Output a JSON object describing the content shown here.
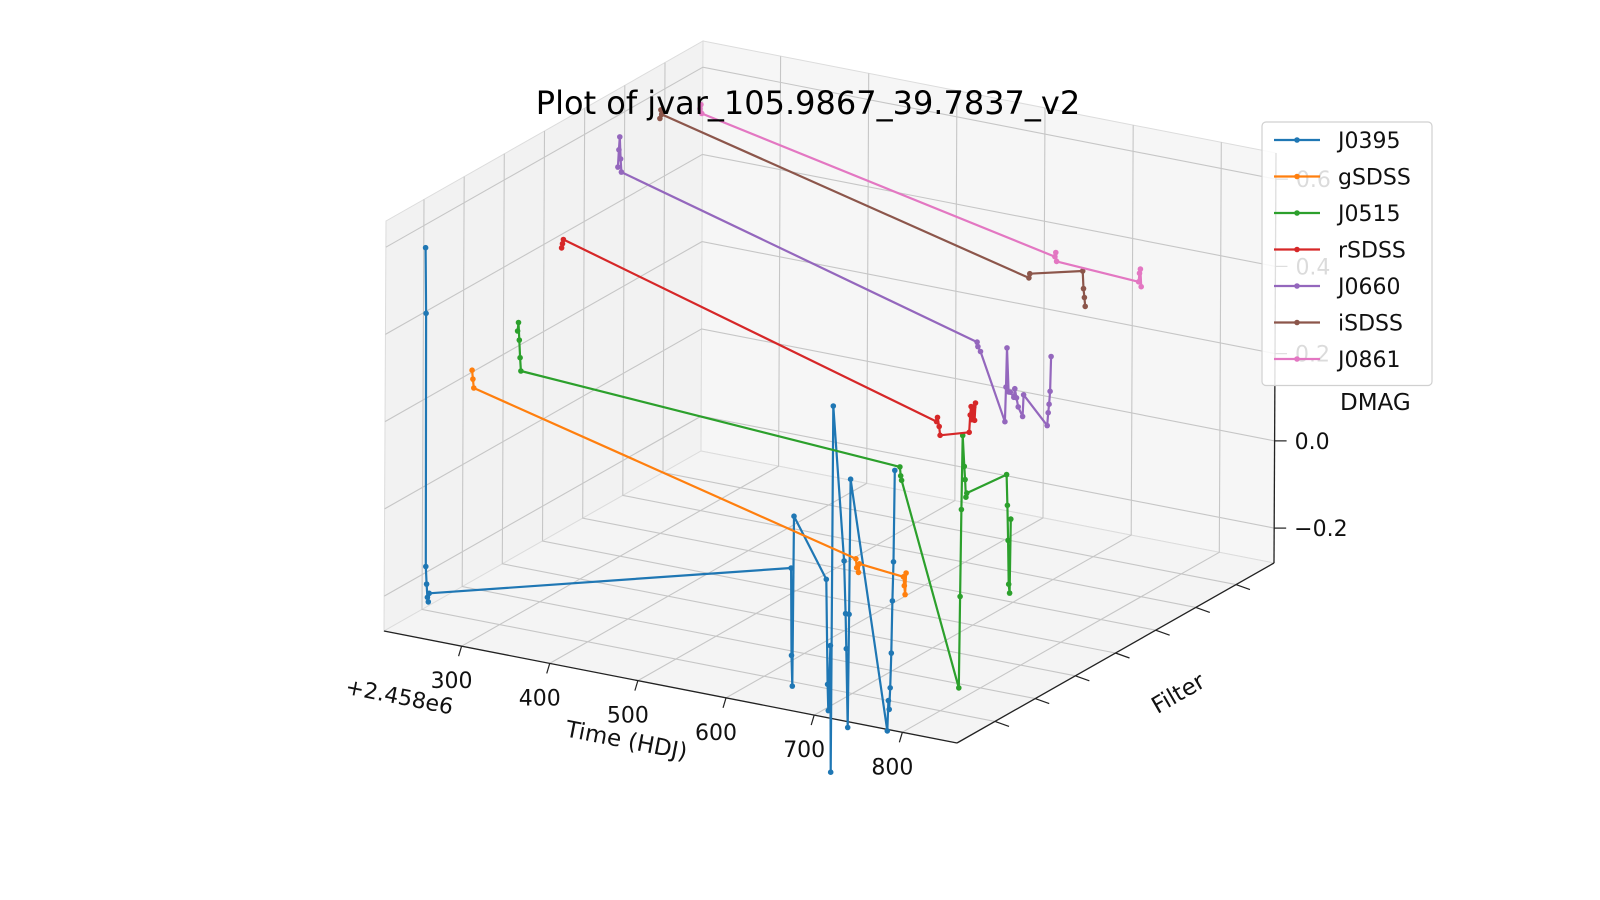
{
  "chart_data": {
    "type": "line",
    "projection": "3d",
    "title": "Plot of jvar_105.9867_39.7837_v2",
    "xlabel": "Time (HDJ)",
    "ylabel": "Filter",
    "zlabel": "DMAG",
    "x_offset_label": "+2.458e6",
    "xlim": [
      212,
      862
    ],
    "zlim": [
      -0.28,
      0.66
    ],
    "x_ticks": [
      "300",
      "400",
      "500",
      "600",
      "700",
      "800"
    ],
    "z_ticks": [
      "−0.2",
      "0.0",
      "0.2",
      "0.4",
      "0.6"
    ],
    "legend_position": "top-right",
    "grid": true,
    "series": [
      {
        "name": "J0395",
        "color": "#1f77b4",
        "points": [
          [
            214,
            0.55
          ],
          [
            215,
            0.4
          ],
          [
            216,
            -0.18
          ],
          [
            217,
            -0.22
          ],
          [
            218,
            -0.25
          ],
          [
            219,
            -0.26
          ],
          [
            220,
            -0.24
          ],
          [
            630,
            -0.02
          ],
          [
            631,
            -0.22
          ],
          [
            632,
            -0.29
          ],
          [
            633,
            0.1
          ],
          [
            670,
            -0.03
          ],
          [
            672,
            -0.27
          ],
          [
            673,
            -0.33
          ],
          [
            675,
            -0.18
          ],
          [
            676,
            -0.47
          ],
          [
            677,
            0.37
          ],
          [
            690,
            0.02
          ],
          [
            692,
            -0.1
          ],
          [
            693,
            -0.18
          ],
          [
            695,
            -0.36
          ],
          [
            696,
            -0.1
          ],
          [
            697,
            0.21
          ],
          [
            740,
            -0.35
          ],
          [
            741,
            -0.28
          ],
          [
            742,
            -0.3
          ],
          [
            743,
            -0.25
          ],
          [
            744,
            -0.17
          ],
          [
            745,
            -0.05
          ],
          [
            746,
            0.04
          ],
          [
            747,
            0.25
          ]
        ]
      },
      {
        "name": "gSDSS",
        "color": "#ff7f0e",
        "points": [
          [
            222,
            0.22
          ],
          [
            223,
            0.2
          ],
          [
            224,
            0.18
          ],
          [
            658,
            -0.04
          ],
          [
            659,
            -0.06
          ],
          [
            661,
            -0.07
          ],
          [
            662,
            -0.05
          ],
          [
            712,
            -0.06
          ],
          [
            713,
            -0.08
          ],
          [
            714,
            -0.1
          ],
          [
            715,
            -0.05
          ]
        ]
      },
      {
        "name": "J0515",
        "color": "#2ca02c",
        "points": [
          [
            228,
            0.26
          ],
          [
            229,
            0.28
          ],
          [
            230,
            0.24
          ],
          [
            231,
            0.2
          ],
          [
            232,
            0.17
          ],
          [
            662,
            0.12
          ],
          [
            663,
            0.1
          ],
          [
            664,
            0.09
          ],
          [
            730,
            -0.36
          ],
          [
            731,
            -0.15
          ],
          [
            732,
            0.05
          ],
          [
            733,
            0.22
          ],
          [
            735,
            0.15
          ],
          [
            736,
            0.12
          ],
          [
            737,
            0.08
          ],
          [
            738,
            0.09
          ],
          [
            783,
            0.15
          ],
          [
            784,
            0.08
          ],
          [
            785,
            0.0
          ],
          [
            786,
            -0.1
          ],
          [
            787,
            -0.12
          ],
          [
            788,
            0.05
          ]
        ]
      },
      {
        "name": "rSDSS",
        "color": "#d62728",
        "points": [
          [
            232,
            0.4
          ],
          [
            233,
            0.41
          ],
          [
            234,
            0.42
          ],
          [
            658,
            0.17
          ],
          [
            659,
            0.18
          ],
          [
            661,
            0.16
          ],
          [
            662,
            0.14
          ],
          [
            695,
            0.16
          ],
          [
            696,
            0.2
          ],
          [
            697,
            0.22
          ],
          [
            698,
            0.19
          ],
          [
            700,
            0.22
          ],
          [
            701,
            0.19
          ],
          [
            702,
            0.23
          ]
        ]
      },
      {
        "name": "J0660",
        "color": "#9467bd",
        "points": [
          [
            250,
            0.54
          ],
          [
            251,
            0.58
          ],
          [
            252,
            0.61
          ],
          [
            253,
            0.56
          ],
          [
            254,
            0.53
          ],
          [
            658,
            0.3
          ],
          [
            659,
            0.29
          ],
          [
            662,
            0.28
          ],
          [
            690,
            0.13
          ],
          [
            691,
            0.21
          ],
          [
            692,
            0.3
          ],
          [
            694,
            0.2
          ],
          [
            696,
            0.2
          ],
          [
            700,
            0.19
          ],
          [
            701,
            0.21
          ],
          [
            703,
            0.19
          ],
          [
            705,
            0.17
          ],
          [
            710,
            0.15
          ],
          [
            711,
            0.2
          ],
          [
            738,
            0.14
          ],
          [
            739,
            0.17
          ],
          [
            740,
            0.19
          ],
          [
            741,
            0.22
          ],
          [
            742,
            0.3
          ]
        ]
      },
      {
        "name": "iSDSS",
        "color": "#8c564b",
        "points": [
          [
            252,
            0.6
          ],
          [
            253,
            0.62
          ],
          [
            254,
            0.61
          ],
          [
            671,
            0.4
          ],
          [
            672,
            0.41
          ],
          [
            732,
            0.44
          ],
          [
            733,
            0.4
          ],
          [
            734,
            0.38
          ],
          [
            735,
            0.36
          ]
        ]
      },
      {
        "name": "J0861",
        "color": "#e377c2",
        "points": [
          [
            252,
            0.57
          ],
          [
            253,
            0.58
          ],
          [
            254,
            0.56
          ],
          [
            655,
            0.39
          ],
          [
            656,
            0.4
          ],
          [
            657,
            0.38
          ],
          [
            750,
            0.37
          ],
          [
            751,
            0.39
          ],
          [
            752,
            0.4
          ],
          [
            753,
            0.36
          ]
        ]
      }
    ]
  }
}
